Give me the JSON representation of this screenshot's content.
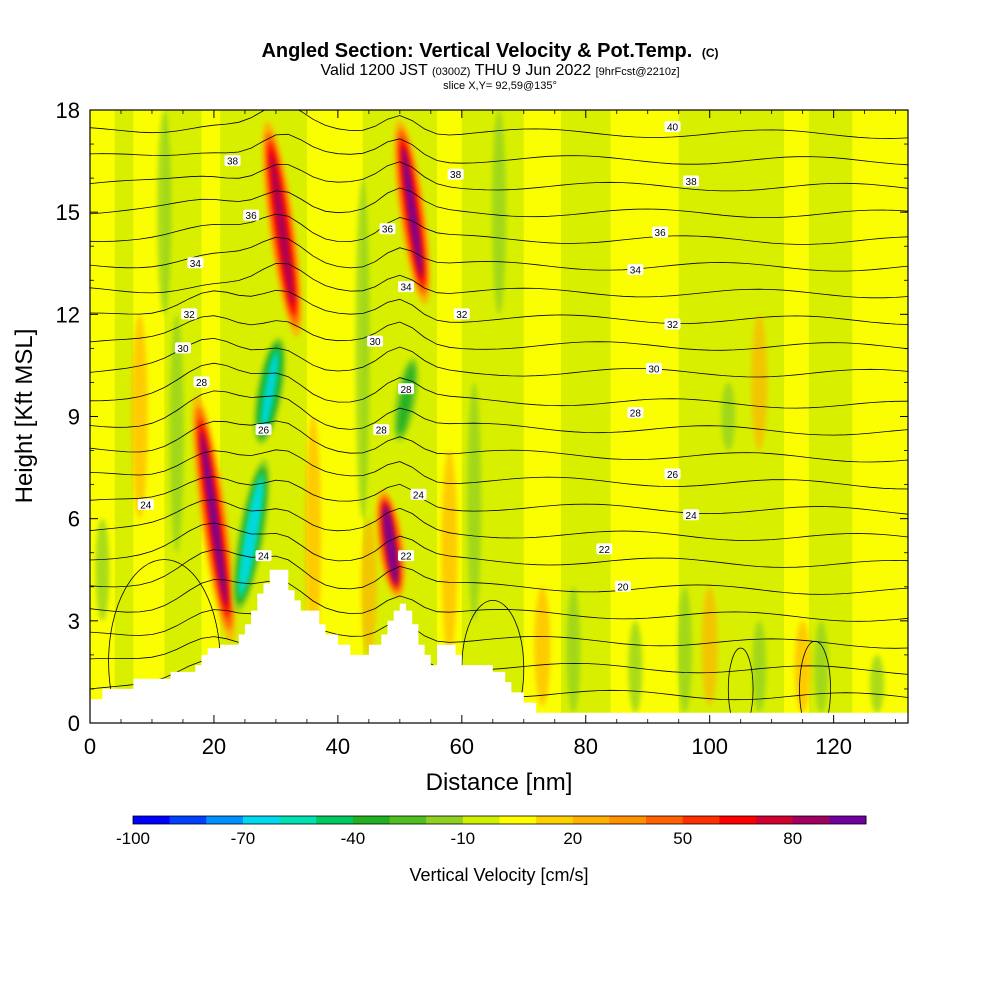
{
  "chart_data": {
    "type": "heatmap",
    "title": {
      "main": "Angled Section: Vertical Velocity & Pot.Temp.",
      "main_suffix": "(C)",
      "line2": [
        {
          "text": "Valid 1200 JST ",
          "small": false
        },
        {
          "text": "(0300Z)",
          "small": true
        },
        {
          "text": " THU 9 Jun 2022 ",
          "small": false
        },
        {
          "text": "[9hrFcst@2210z]",
          "small": true
        }
      ],
      "line3": "slice X,Y= 92,59@135°"
    },
    "xlabel": "Distance [nm]",
    "ylabel": "Height [Kft MSL]",
    "xlim": [
      0,
      132
    ],
    "ylim": [
      0,
      18
    ],
    "x_ticks": [
      0,
      20,
      40,
      60,
      80,
      100,
      120
    ],
    "y_ticks": [
      0,
      3,
      6,
      9,
      12,
      15,
      18
    ],
    "colorbar": {
      "label": "Vertical Velocity [cm/s]",
      "min": -100,
      "max": 100,
      "step": 10,
      "tick_labels": [
        "-100",
        "-70",
        "-40",
        "-10",
        "20",
        "50",
        "80"
      ],
      "tick_values": [
        -100,
        -70,
        -40,
        -10,
        20,
        50,
        80
      ],
      "colors": [
        "#0000ff",
        "#0040ff",
        "#0090ff",
        "#00d8f0",
        "#00e0b0",
        "#00c860",
        "#20b020",
        "#50c020",
        "#90d020",
        "#d0f000",
        "#ffff00",
        "#ffd000",
        "#ffb000",
        "#ff9000",
        "#ff6000",
        "#ff3000",
        "#ff0000",
        "#d00030",
        "#a00060",
        "#7000a0"
      ]
    },
    "vertical_velocity_features": [
      {
        "kind": "updraft",
        "x": 20,
        "y_range": [
          2,
          10
        ],
        "peak": 90
      },
      {
        "kind": "downdraft",
        "x": 26,
        "y_range": [
          3,
          8
        ],
        "peak": -70
      },
      {
        "kind": "downdraft",
        "x": 29,
        "y_range": [
          8,
          11.5
        ],
        "peak": -65
      },
      {
        "kind": "updraft",
        "x": 31,
        "y_range": [
          11,
          18
        ],
        "peak": 85
      },
      {
        "kind": "updraft",
        "x": 48.5,
        "y_range": [
          3.5,
          7
        ],
        "peak": 95
      },
      {
        "kind": "updraft",
        "x": 52,
        "y_range": [
          12,
          18
        ],
        "peak": 90
      },
      {
        "kind": "downdraft",
        "x": 51,
        "y_range": [
          8,
          11
        ],
        "peak": -40
      }
    ],
    "isentrope_labels": [
      {
        "value": "40",
        "x": 94,
        "y": 17.5
      },
      {
        "value": "38",
        "x": 23,
        "y": 16.5
      },
      {
        "value": "38",
        "x": 59,
        "y": 16.1
      },
      {
        "value": "38",
        "x": 97,
        "y": 15.9
      },
      {
        "value": "36",
        "x": 26,
        "y": 14.9
      },
      {
        "value": "36",
        "x": 48,
        "y": 14.5
      },
      {
        "value": "36",
        "x": 92,
        "y": 14.4
      },
      {
        "value": "34",
        "x": 17,
        "y": 13.5
      },
      {
        "value": "34",
        "x": 51,
        "y": 12.8
      },
      {
        "value": "34",
        "x": 88,
        "y": 13.3
      },
      {
        "value": "32",
        "x": 16,
        "y": 12.0
      },
      {
        "value": "32",
        "x": 60,
        "y": 12.0
      },
      {
        "value": "32",
        "x": 94,
        "y": 11.7
      },
      {
        "value": "30",
        "x": 15,
        "y": 11.0
      },
      {
        "value": "30",
        "x": 46,
        "y": 11.2
      },
      {
        "value": "30",
        "x": 91,
        "y": 10.4
      },
      {
        "value": "28",
        "x": 18,
        "y": 10.0
      },
      {
        "value": "28",
        "x": 51,
        "y": 9.8
      },
      {
        "value": "28",
        "x": 88,
        "y": 9.1
      },
      {
        "value": "26",
        "x": 28,
        "y": 8.6
      },
      {
        "value": "28",
        "x": 47,
        "y": 8.6
      },
      {
        "value": "26",
        "x": 94,
        "y": 7.3
      },
      {
        "value": "24",
        "x": 9,
        "y": 6.4
      },
      {
        "value": "24",
        "x": 53,
        "y": 6.7
      },
      {
        "value": "24",
        "x": 97,
        "y": 6.1
      },
      {
        "value": "24",
        "x": 28,
        "y": 4.9
      },
      {
        "value": "22",
        "x": 51,
        "y": 4.9
      },
      {
        "value": "22",
        "x": 83,
        "y": 5.1
      },
      {
        "value": "20",
        "x": 86,
        "y": 4.0
      }
    ]
  }
}
